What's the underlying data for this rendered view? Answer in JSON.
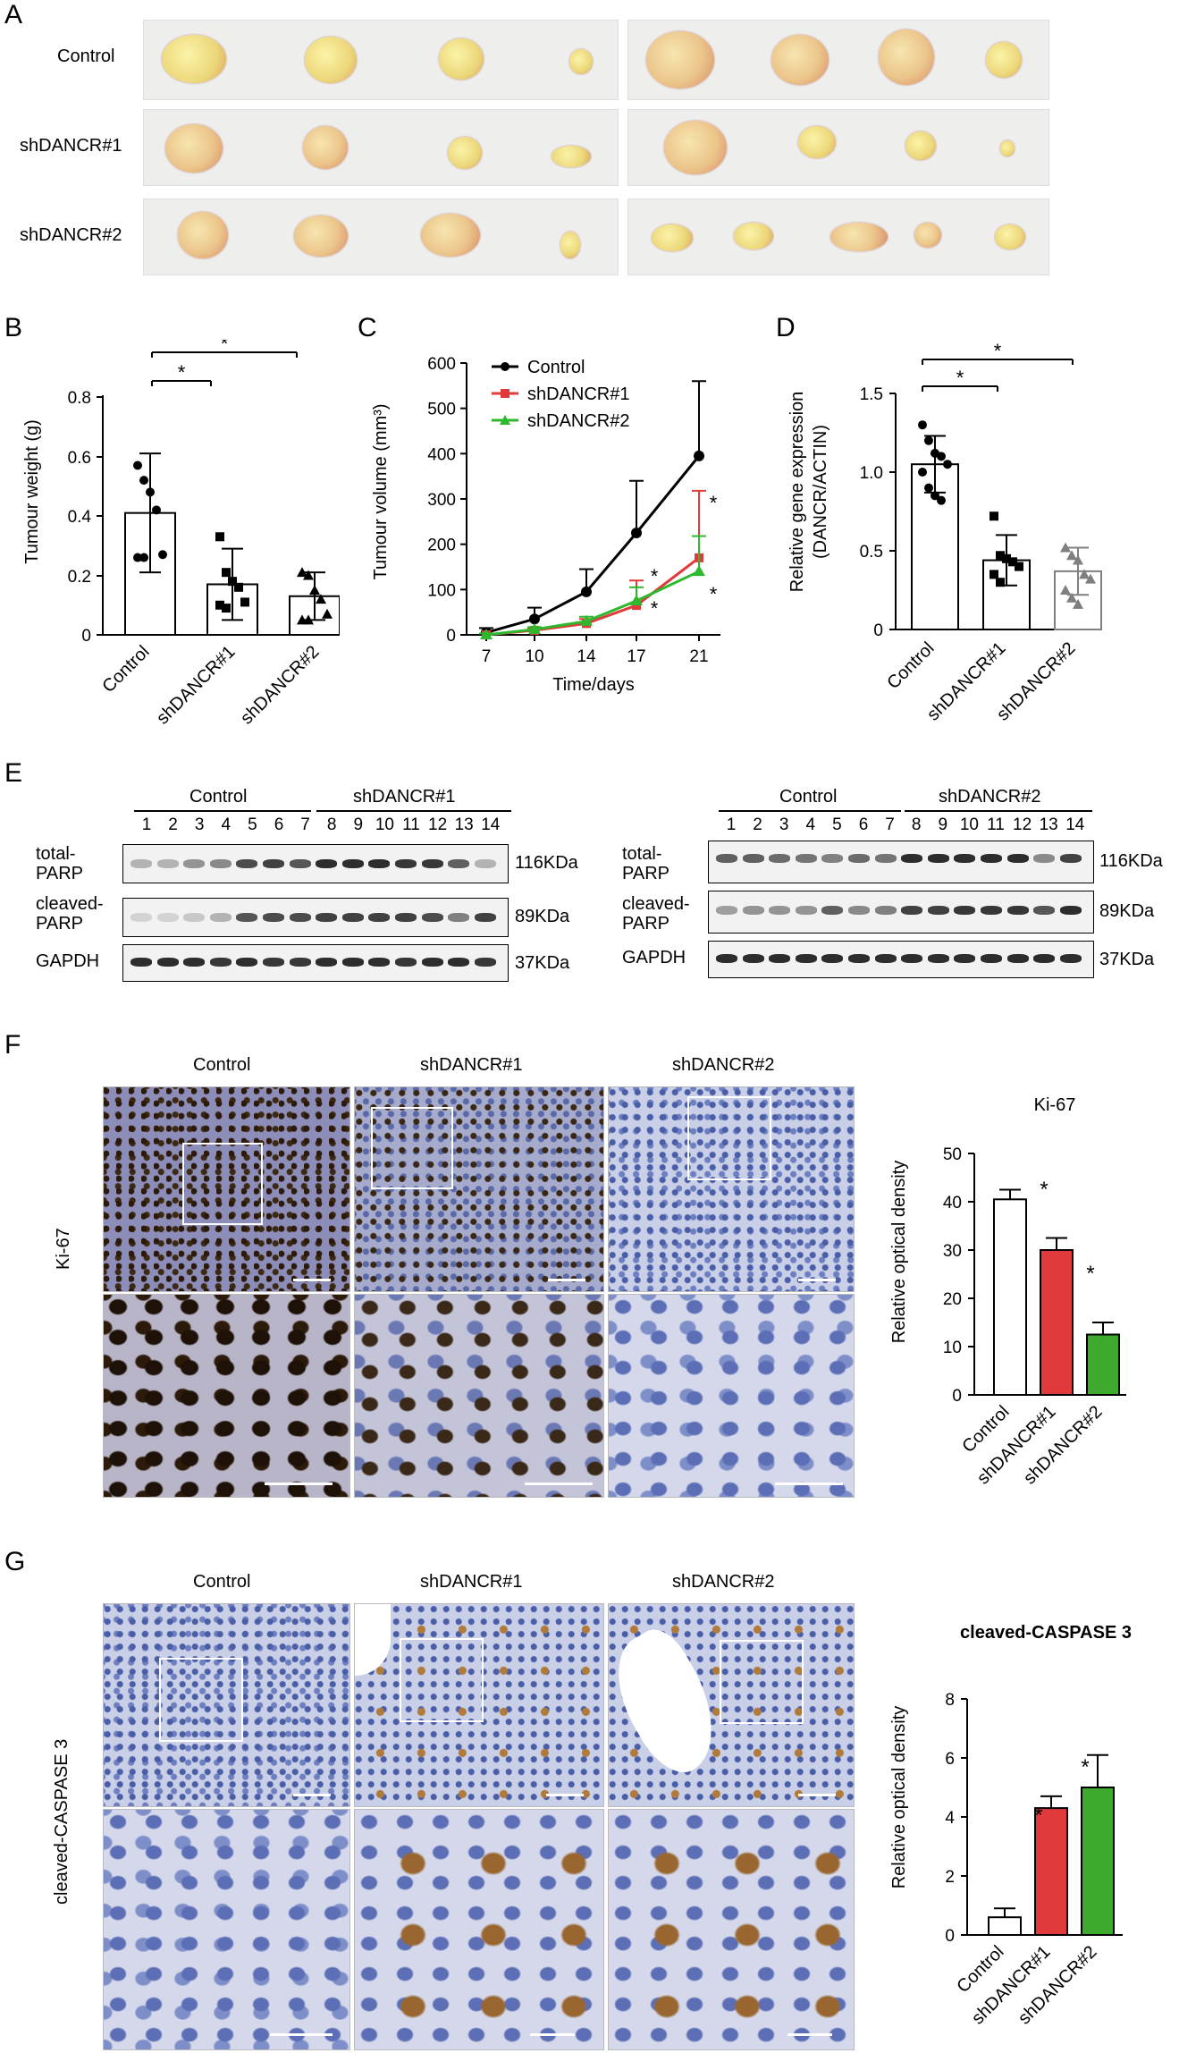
{
  "panels": {
    "A": "A",
    "B": "B",
    "C": "C",
    "D": "D",
    "E": "E",
    "F": "F",
    "G": "G"
  },
  "panelA": {
    "rows": [
      "Control",
      "shDANCR#1",
      "shDANCR#2"
    ]
  },
  "chartB": {
    "ylabel": "Tumour weight (g)",
    "yticks": [
      "0",
      "0.2",
      "0.4",
      "0.6",
      "0.8"
    ],
    "categories": [
      "Control",
      "shDANCR#1",
      "shDANCR#2"
    ],
    "star": "*"
  },
  "chartC": {
    "ylabel": "Tumour volume (mm³)",
    "xlabel": "Time/days",
    "yticks": [
      "0",
      "100",
      "200",
      "300",
      "400",
      "500",
      "600"
    ],
    "xticks": [
      "7",
      "10",
      "14",
      "17",
      "21"
    ],
    "legend": [
      "Control",
      "shDANCR#1",
      "shDANCR#2"
    ],
    "star": "*"
  },
  "chartD": {
    "ylabel1": "Relative gene expression",
    "ylabel2": "(DANCR/ACTIN)",
    "yticks": [
      "0",
      "0.5",
      "1.0",
      "1.5"
    ],
    "categories": [
      "Control",
      "shDANCR#1",
      "shDANCR#2"
    ],
    "star": "*"
  },
  "panelE": {
    "left": {
      "group1": "Control",
      "group2": "shDANCR#1"
    },
    "right": {
      "group1": "Control",
      "group2": "shDANCR#2"
    },
    "lanes": [
      "1",
      "2",
      "3",
      "4",
      "5",
      "6",
      "7",
      "8",
      "9",
      "10",
      "11",
      "12",
      "13",
      "14"
    ],
    "row1a": "total-",
    "row1b": "PARP",
    "row2a": "cleaved-",
    "row2b": "PARP",
    "row3": "GAPDH",
    "kda1": "116KDa",
    "kda2": "89KDa",
    "kda3": "37KDa"
  },
  "panelF": {
    "cols": [
      "Control",
      "shDANCR#1",
      "shDANCR#2"
    ],
    "rowlabel": "Ki-67",
    "charttitle": "Ki-67",
    "ylabel": "Relative optical density",
    "yticks": [
      "0",
      "10",
      "20",
      "30",
      "40",
      "50"
    ],
    "categories": [
      "Control",
      "shDANCR#1",
      "shDANCR#2"
    ],
    "star": "*"
  },
  "panelG": {
    "cols": [
      "Control",
      "shDANCR#1",
      "shDANCR#2"
    ],
    "rowlabel": "cleaved-CASPASE 3",
    "charttitle": "cleaved-CASPASE 3",
    "ylabel": "Relative optical density",
    "yticks": [
      "0",
      "2",
      "4",
      "6",
      "8"
    ],
    "categories": [
      "Control",
      "shDANCR#1",
      "shDANCR#2"
    ],
    "star": "*"
  },
  "chart_data": [
    {
      "type": "bar",
      "title": "",
      "xlabel": "",
      "ylabel": "Tumour weight (g)",
      "ylim": [
        0,
        0.8
      ],
      "categories": [
        "Control",
        "shDANCR#1",
        "shDANCR#2"
      ],
      "values": [
        0.41,
        0.17,
        0.13
      ],
      "errors": [
        0.2,
        0.12,
        0.08
      ],
      "points": [
        [
          0.57,
          0.52,
          0.48,
          0.42,
          0.27,
          0.26,
          0.26
        ],
        [
          0.33,
          0.21,
          0.18,
          0.16,
          0.11,
          0.1,
          0.09
        ],
        [
          0.21,
          0.2,
          0.15,
          0.12,
          0.07,
          0.05,
          0.05
        ]
      ],
      "colors": [
        "#000000",
        "#000000",
        "#000000"
      ]
    },
    {
      "type": "line",
      "title": "",
      "xlabel": "Time/days",
      "ylabel": "Tumour volume (mm³)",
      "ylim": [
        0,
        600
      ],
      "x": [
        7,
        10,
        14,
        17,
        21
      ],
      "series": [
        {
          "name": "Control",
          "values": [
            5,
            35,
            95,
            225,
            395
          ],
          "errors": [
            10,
            25,
            50,
            115,
            165
          ],
          "color": "#000000"
        },
        {
          "name": "shDANCR#1",
          "values": [
            0,
            10,
            25,
            65,
            170
          ],
          "errors": [
            3,
            5,
            10,
            55,
            148
          ],
          "color": "#e03a3a"
        },
        {
          "name": "shDANCR#2",
          "values": [
            0,
            12,
            30,
            75,
            140
          ],
          "errors": [
            3,
            5,
            10,
            30,
            78
          ],
          "color": "#2db82d"
        }
      ]
    },
    {
      "type": "bar",
      "title": "",
      "xlabel": "",
      "ylabel": "Relative gene expression (DANCR/ACTIN)",
      "ylim": [
        0,
        1.5
      ],
      "categories": [
        "Control",
        "shDANCR#1",
        "shDANCR#2"
      ],
      "values": [
        1.05,
        0.44,
        0.37
      ],
      "errors": [
        0.18,
        0.16,
        0.15
      ],
      "points": [
        [
          1.3,
          1.2,
          1.12,
          1.1,
          1.05,
          1.0,
          0.9,
          0.85,
          0.82
        ],
        [
          0.72,
          0.47,
          0.45,
          0.43,
          0.4,
          0.35,
          0.3
        ],
        [
          0.52,
          0.47,
          0.44,
          0.35,
          0.32,
          0.25,
          0.2,
          0.16
        ]
      ],
      "colors": [
        "#000000",
        "#000000",
        "#7f7f7f"
      ]
    },
    {
      "type": "bar",
      "title": "Ki-67",
      "xlabel": "",
      "ylabel": "Relative optical density",
      "ylim": [
        0,
        50
      ],
      "categories": [
        "Control",
        "shDANCR#1",
        "shDANCR#2"
      ],
      "values": [
        40.5,
        30,
        12.5
      ],
      "errors": [
        2,
        2.5,
        2.5
      ],
      "colors": [
        "#ffffff",
        "#e03a3a",
        "#3daa2d"
      ]
    },
    {
      "type": "bar",
      "title": "cleaved-CASPASE 3",
      "xlabel": "",
      "ylabel": "Relative optical density",
      "ylim": [
        0,
        8
      ],
      "categories": [
        "Control",
        "shDANCR#1",
        "shDANCR#2"
      ],
      "values": [
        0.6,
        4.3,
        5
      ],
      "errors": [
        0.3,
        0.4,
        1.1
      ],
      "colors": [
        "#ffffff",
        "#e03a3a",
        "#3daa2d"
      ]
    }
  ]
}
